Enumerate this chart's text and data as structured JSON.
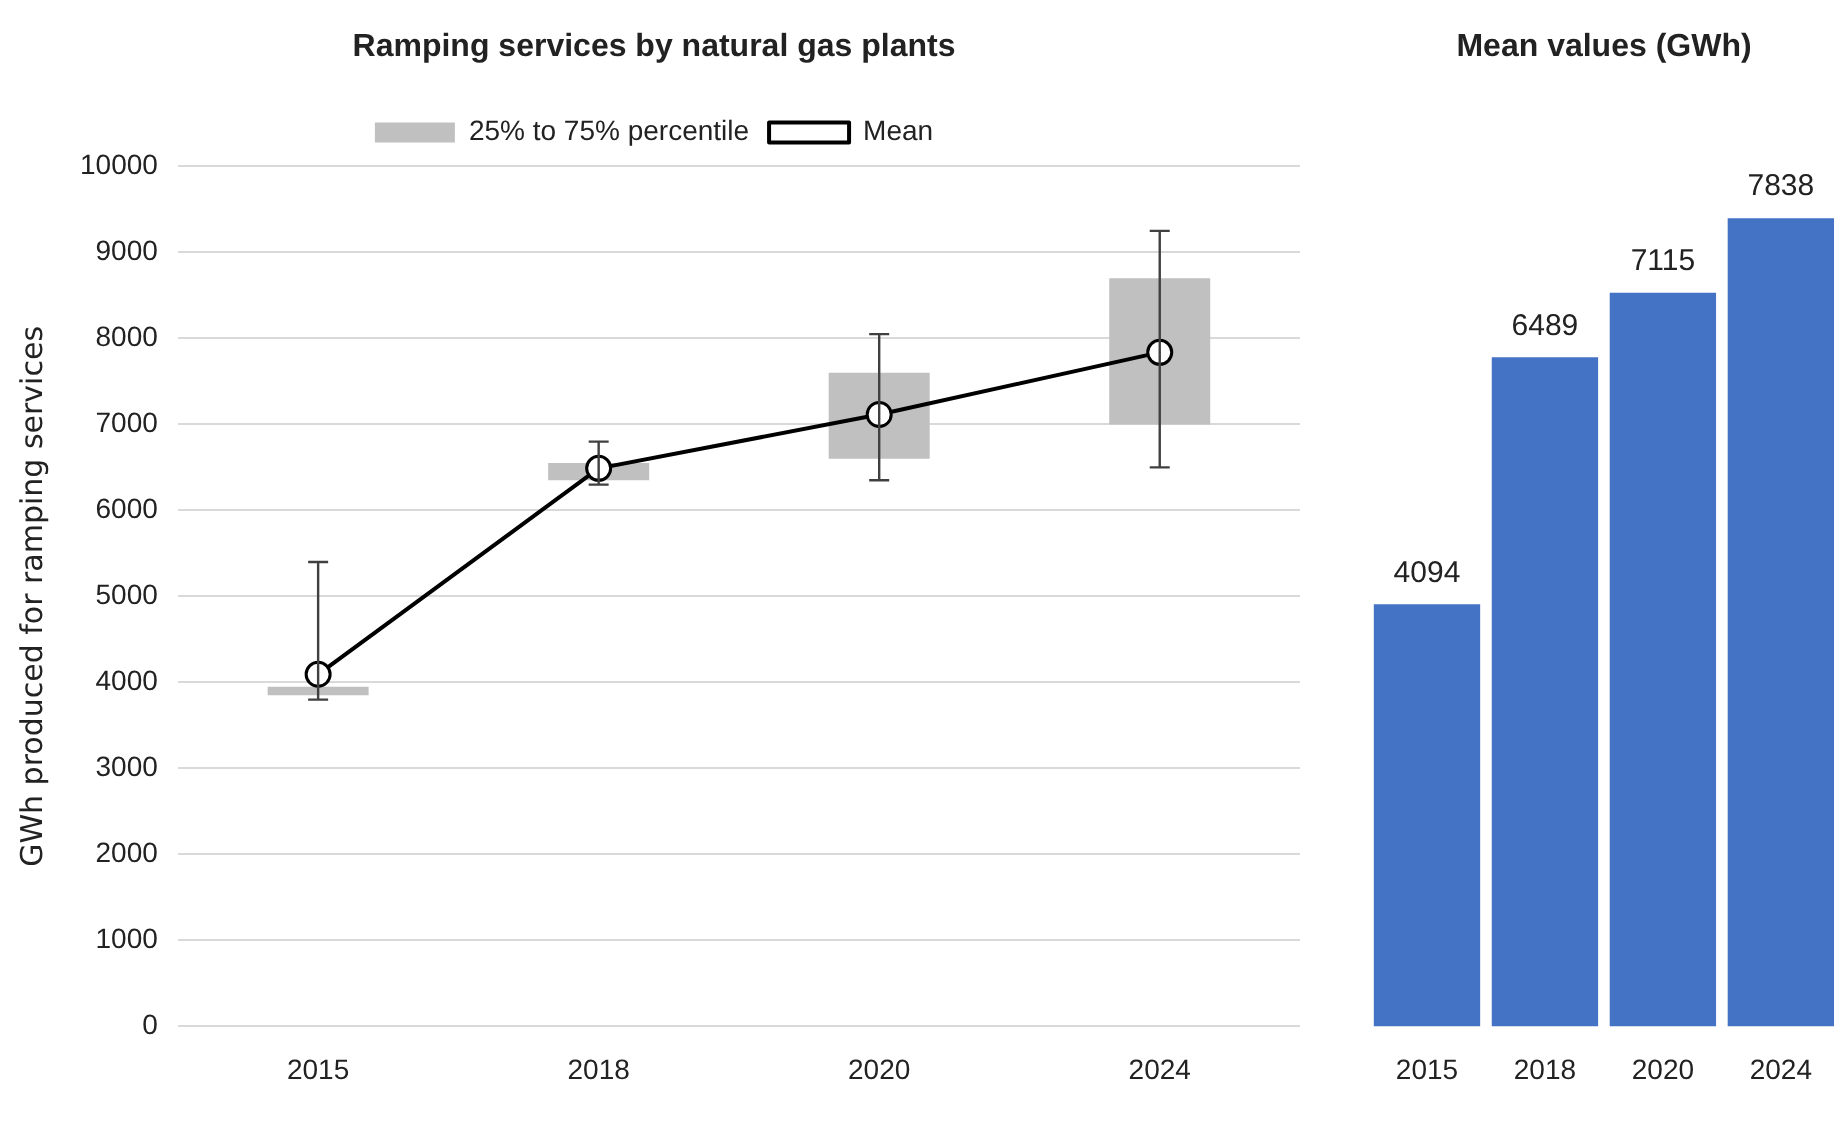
{
  "chart_data": [
    {
      "type": "line",
      "title": "Ramping services by natural gas plants",
      "ylabel": "GWh produced for ramping services",
      "categories": [
        "2015",
        "2018",
        "2020",
        "2024"
      ],
      "ylim": [
        0,
        10000
      ],
      "yticks": [
        0,
        1000,
        2000,
        3000,
        4000,
        5000,
        6000,
        7000,
        8000,
        9000,
        10000
      ],
      "grid": "y",
      "legend": "top",
      "series": [
        {
          "name": "25% to 75% percentile",
          "type": "bar",
          "color": "#c0c0c0",
          "base": [
            3850,
            6350,
            6600,
            7000
          ],
          "values": [
            100,
            200,
            1000,
            1700
          ]
        },
        {
          "name": "Mean",
          "type": "line",
          "color": "#000000",
          "marker": "circle",
          "line_style": "solid",
          "values": [
            4094,
            6489,
            7115,
            7838
          ],
          "errors": [
            [
              3800,
              5400
            ],
            [
              6300,
              6800
            ],
            [
              6350,
              8050
            ],
            [
              6500,
              9250
            ]
          ]
        }
      ]
    },
    {
      "type": "bar",
      "title": "Mean values (GWh)",
      "categories": [
        "2015",
        "2018",
        "2020",
        "2024"
      ],
      "values": [
        4094,
        6489,
        7115,
        7838
      ],
      "color": "#4472c4",
      "data_labels": true,
      "tick_labels": "x",
      "grid": false,
      "legend": false
    }
  ]
}
